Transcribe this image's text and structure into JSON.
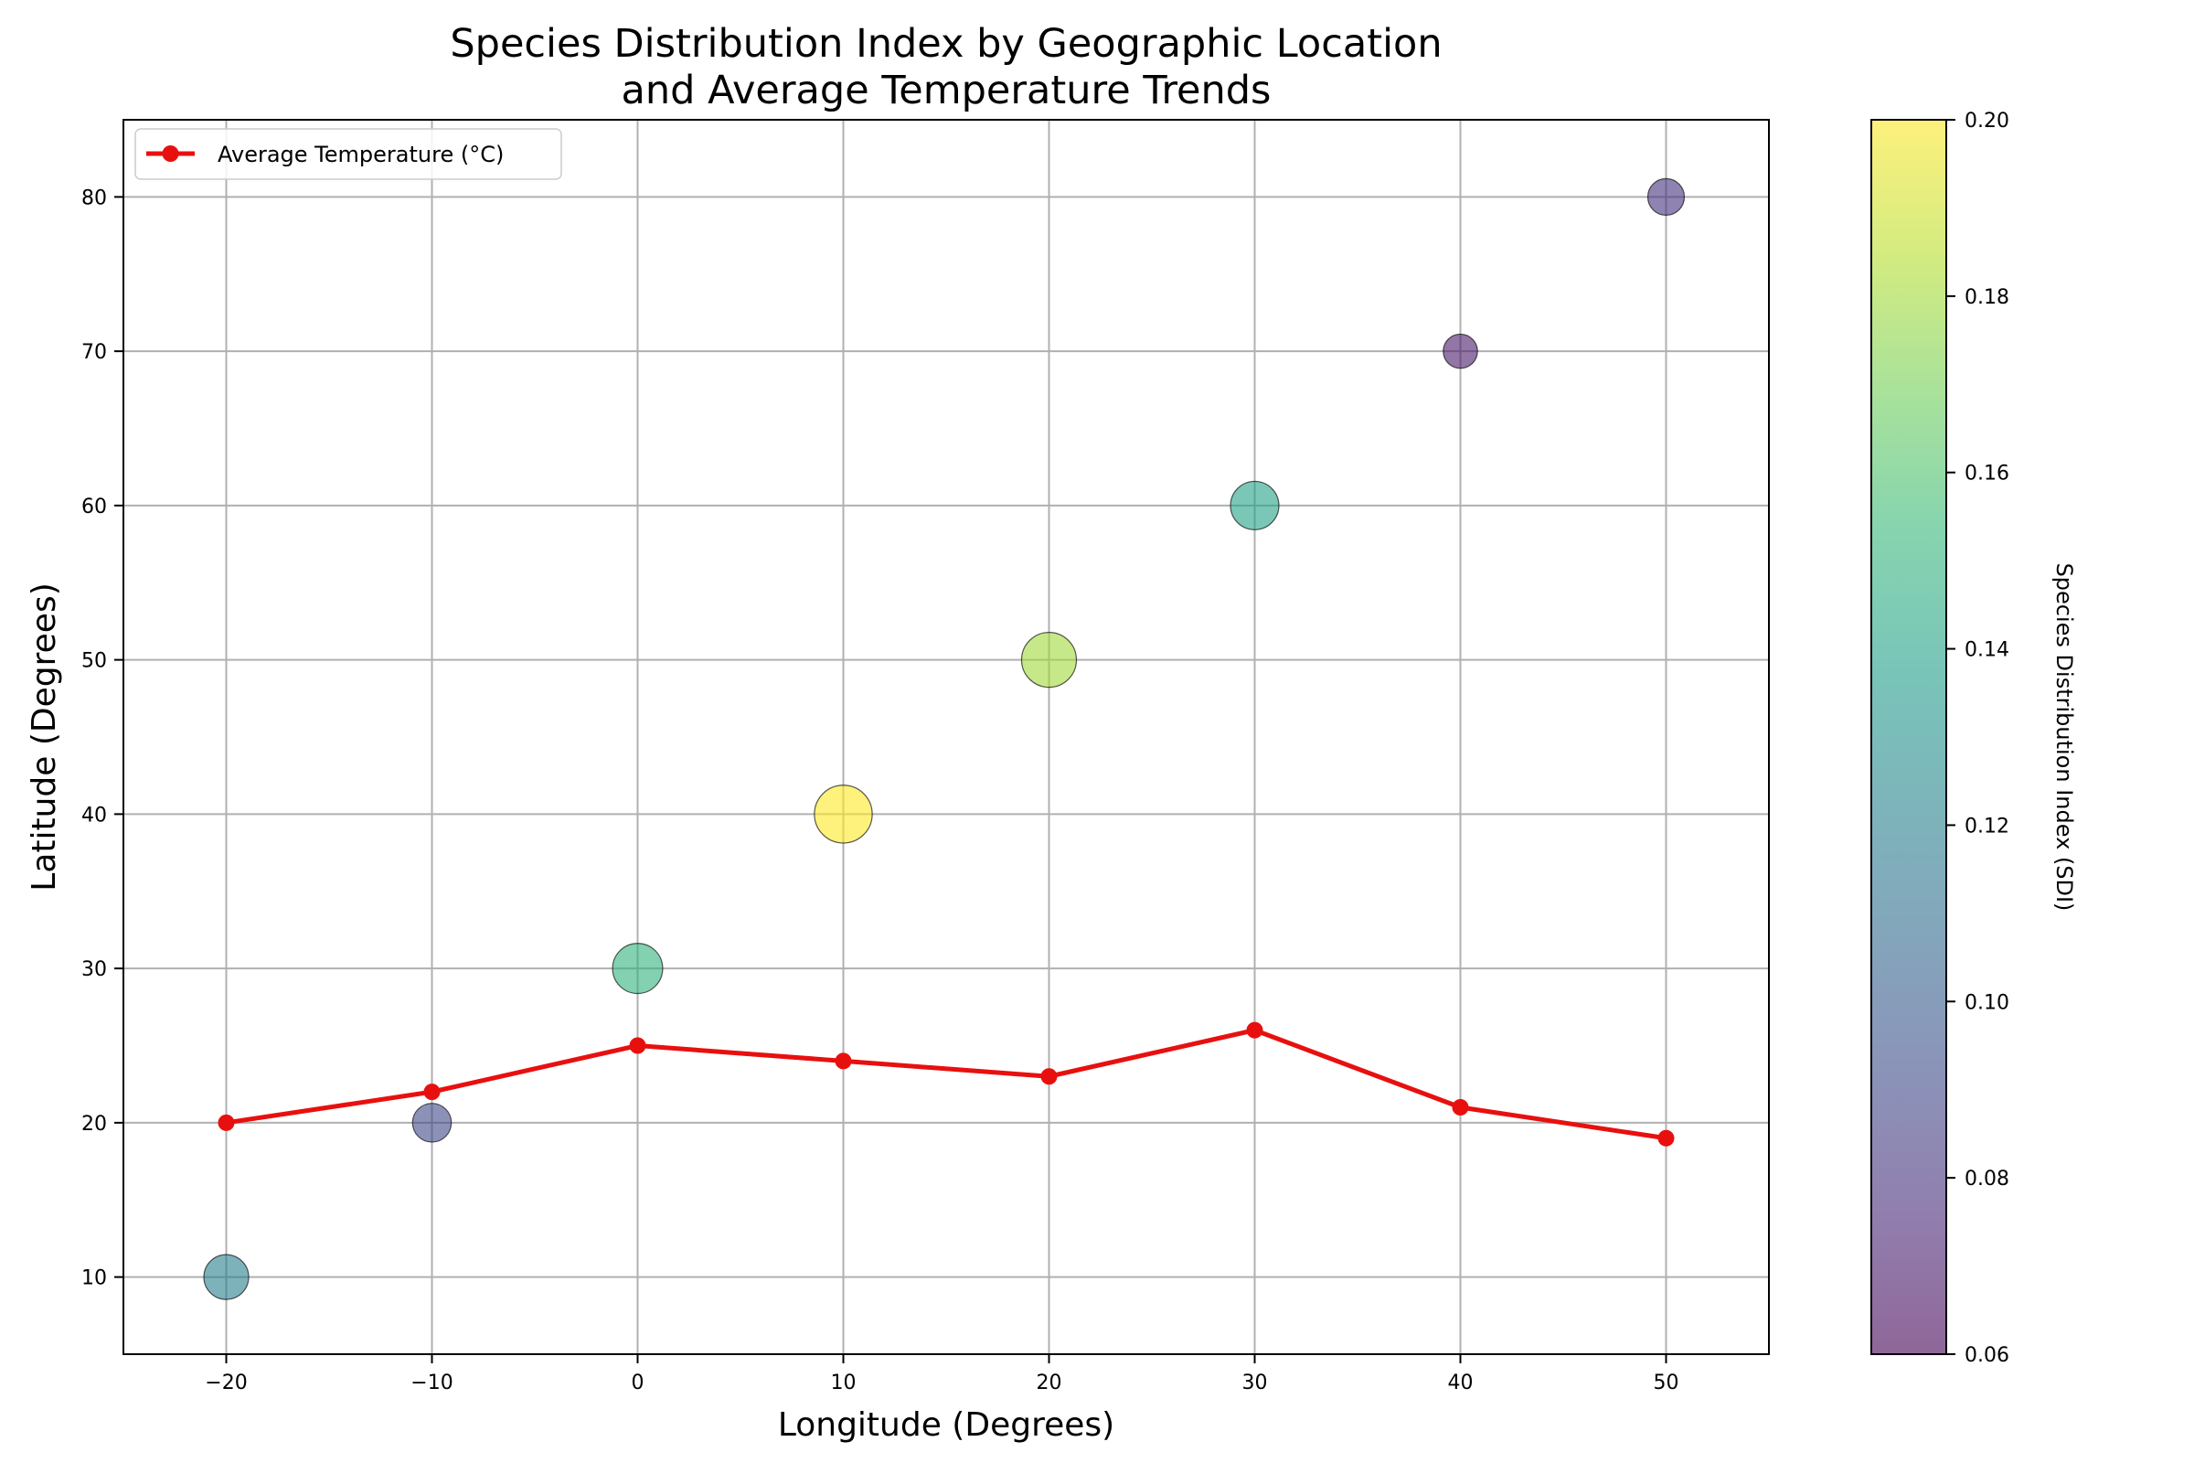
{
  "chart_data": {
    "type": "scatter",
    "title_lines": [
      "Species Distribution Index by Geographic Location",
      "and Average Temperature Trends"
    ],
    "xlabel": "Longitude (Degrees)",
    "ylabel": "Latitude (Degrees)",
    "xlim": [
      -25,
      55
    ],
    "ylim": [
      5,
      85
    ],
    "x_ticks": [
      -20,
      -10,
      0,
      10,
      20,
      30,
      40,
      50
    ],
    "x_tick_labels": [
      "−20",
      "−10",
      "0",
      "10",
      "20",
      "30",
      "40",
      "50"
    ],
    "y_ticks": [
      10,
      20,
      30,
      40,
      50,
      60,
      70,
      80
    ],
    "y_tick_labels": [
      "10",
      "20",
      "30",
      "40",
      "50",
      "60",
      "70",
      "80"
    ],
    "grid": true,
    "scatter": {
      "x": [
        -20,
        -10,
        0,
        10,
        20,
        30,
        40,
        50
      ],
      "y": [
        10,
        20,
        30,
        40,
        50,
        60,
        70,
        80
      ],
      "sdi": [
        0.12,
        0.09,
        0.15,
        0.2,
        0.18,
        0.14,
        0.07,
        0.08
      ],
      "colormap": "viridis",
      "alpha": 0.6
    },
    "line_series": {
      "name": "Average Temperature (°C)",
      "color": "#e8100f",
      "x": [
        -20,
        -10,
        0,
        10,
        20,
        30,
        40,
        50
      ],
      "y": [
        20,
        22,
        25,
        24,
        23,
        26,
        21,
        19
      ]
    },
    "legend": {
      "placement": "upper-left",
      "entries": [
        "Average Temperature (°C)"
      ]
    },
    "colorbar": {
      "label": "Species Distribution Index (SDI)",
      "range": [
        0.06,
        0.2
      ],
      "ticks": [
        0.06,
        0.08,
        0.1,
        0.12,
        0.14,
        0.16,
        0.18,
        0.2
      ],
      "tick_labels": [
        "0.06",
        "0.08",
        "0.10",
        "0.12",
        "0.14",
        "0.16",
        "0.18",
        "0.20"
      ]
    }
  }
}
